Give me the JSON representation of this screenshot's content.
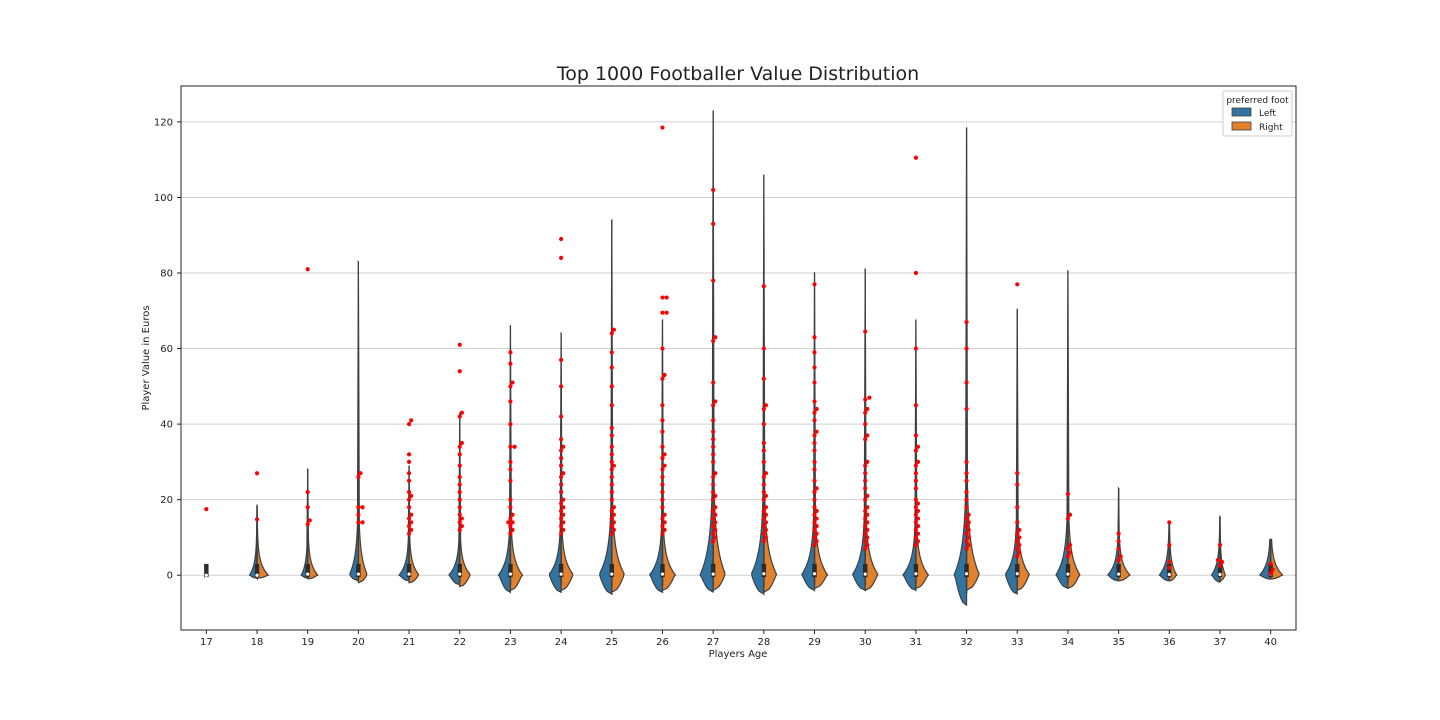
{
  "colors": {
    "left": "#3274a1",
    "right": "#e1812c",
    "swarm": "#ff0000",
    "outline": "#3f3f3f",
    "grid": "#d0d0d0"
  },
  "chart_data": {
    "type": "violin",
    "title": "Top 1000 Footballer Value Distribution",
    "xlabel": "Players Age",
    "ylabel": "Player Value in Euros",
    "categories": [
      "17",
      "18",
      "19",
      "20",
      "21",
      "22",
      "23",
      "24",
      "25",
      "26",
      "27",
      "28",
      "29",
      "30",
      "31",
      "32",
      "33",
      "34",
      "35",
      "36",
      "37",
      "40"
    ],
    "ylim": [
      -14.5,
      129.5
    ],
    "yticks": [
      0,
      20,
      40,
      60,
      80,
      100,
      120
    ],
    "grid": "horizontal",
    "legend": {
      "title": "preferred foot",
      "entries": [
        "Left",
        "Right"
      ],
      "position": "top-right"
    },
    "violins": [
      {
        "age": "17",
        "max": 1,
        "left": {
          "w": 0.01,
          "min": -0.2
        },
        "right": {
          "w": 0.01,
          "min": -0.2
        },
        "median": 0,
        "outliers": [
          17.5
        ]
      },
      {
        "age": "18",
        "max": 18.5,
        "left": {
          "w": 0.3,
          "min": -0.8
        },
        "right": {
          "w": 0.45,
          "min": -0.8
        },
        "median": 0,
        "outliers": [
          27,
          14.8
        ]
      },
      {
        "age": "19",
        "max": 28,
        "left": {
          "w": 0.26,
          "min": -0.8
        },
        "right": {
          "w": 0.4,
          "min": -1
        },
        "median": 0.3,
        "outliers": [
          81,
          22,
          18,
          14.5,
          13.5
        ]
      },
      {
        "age": "20",
        "max": 83,
        "left": {
          "w": 0.36,
          "min": -1.5
        },
        "right": {
          "w": 0.36,
          "min": -2
        },
        "median": 0.3,
        "outliers": [
          27,
          26,
          18,
          18,
          16,
          14,
          14
        ]
      },
      {
        "age": "21",
        "max": 29,
        "left": {
          "w": 0.4,
          "min": -1.5
        },
        "right": {
          "w": 0.4,
          "min": -2
        },
        "median": 0.3,
        "outliers": [
          41,
          40,
          32,
          30,
          27,
          25,
          22,
          21,
          20,
          18,
          16,
          15,
          14,
          13,
          12,
          11
        ]
      },
      {
        "age": "22",
        "max": 43,
        "left": {
          "w": 0.44,
          "min": -2.5
        },
        "right": {
          "w": 0.44,
          "min": -3
        },
        "median": 0.3,
        "outliers": [
          61,
          54,
          43,
          42,
          35,
          34,
          32,
          29,
          26,
          24,
          22,
          20,
          18,
          16,
          15,
          14,
          13,
          12
        ]
      },
      {
        "age": "23",
        "max": 66,
        "left": {
          "w": 0.48,
          "min": -4.5
        },
        "right": {
          "w": 0.48,
          "min": -4
        },
        "median": 0.3,
        "outliers": [
          59,
          56,
          51,
          50,
          46,
          40,
          34,
          34,
          30,
          28,
          25,
          20,
          18,
          16,
          15,
          14,
          14,
          13,
          12,
          11
        ]
      },
      {
        "age": "24",
        "max": 64,
        "left": {
          "w": 0.5,
          "min": -4.5
        },
        "right": {
          "w": 0.5,
          "min": -4
        },
        "median": 0.3,
        "outliers": [
          89,
          84,
          57,
          50,
          42,
          36,
          34,
          33,
          31,
          29,
          27,
          26,
          24,
          22,
          20,
          19,
          18,
          17,
          16,
          15,
          14,
          13,
          12,
          11
        ]
      },
      {
        "age": "25",
        "max": 94,
        "left": {
          "w": 0.52,
          "min": -5
        },
        "right": {
          "w": 0.52,
          "min": -4.5
        },
        "median": 0.3,
        "outliers": [
          65,
          64,
          59,
          55,
          50,
          45,
          39,
          37,
          34,
          32,
          30,
          29,
          28,
          26,
          24,
          22,
          20,
          18,
          17,
          16,
          15,
          14,
          13,
          12,
          11
        ]
      },
      {
        "age": "26",
        "max": 67.5,
        "left": {
          "w": 0.52,
          "min": -4.5
        },
        "right": {
          "w": 0.52,
          "min": -4
        },
        "median": 0.3,
        "outliers": [
          118.5,
          73.5,
          73.5,
          69.5,
          69.5,
          60,
          53,
          52,
          45,
          41,
          38,
          34,
          32,
          31,
          29,
          28,
          26,
          24,
          22,
          20,
          18,
          16,
          15,
          14,
          13,
          12,
          11
        ]
      },
      {
        "age": "27",
        "max": 123,
        "left": {
          "w": 0.52,
          "min": -4.5
        },
        "right": {
          "w": 0.5,
          "min": -4
        },
        "median": 0.3,
        "outliers": [
          102,
          93,
          78,
          63,
          62,
          51,
          46,
          45,
          41,
          38,
          36,
          34,
          32,
          30,
          27,
          26,
          24,
          22,
          21,
          20,
          18,
          17,
          16,
          15,
          14,
          13,
          12,
          11,
          10,
          9
        ]
      },
      {
        "age": "28",
        "max": 106,
        "left": {
          "w": 0.52,
          "min": -5
        },
        "right": {
          "w": 0.52,
          "min": -4.5
        },
        "median": 0.4,
        "outliers": [
          76.5,
          60,
          52,
          45,
          44,
          40,
          35,
          33,
          30,
          27,
          26,
          24,
          22,
          21,
          20,
          18,
          17,
          16,
          15,
          14,
          13,
          12,
          11,
          10,
          9
        ]
      },
      {
        "age": "29",
        "max": 80,
        "left": {
          "w": 0.52,
          "min": -4
        },
        "right": {
          "w": 0.52,
          "min": -3.5
        },
        "median": 0.4,
        "outliers": [
          77,
          63,
          59,
          55,
          51,
          46,
          44,
          43,
          41,
          38,
          37,
          35,
          33,
          30,
          28,
          25,
          23,
          22,
          20,
          18,
          17,
          16,
          15,
          14,
          13,
          12,
          11,
          10,
          9,
          8
        ]
      },
      {
        "age": "30",
        "max": 81,
        "left": {
          "w": 0.52,
          "min": -4
        },
        "right": {
          "w": 0.52,
          "min": -4
        },
        "median": 0.3,
        "outliers": [
          64.5,
          47,
          46.5,
          44,
          43,
          40,
          37,
          36,
          30,
          29,
          27,
          25,
          23,
          21,
          20,
          18,
          17,
          16,
          15,
          14,
          13,
          12,
          11,
          10,
          9,
          8,
          7
        ]
      },
      {
        "age": "31",
        "max": 67.5,
        "left": {
          "w": 0.52,
          "min": -4
        },
        "right": {
          "w": 0.5,
          "min": -3.5
        },
        "median": 0.4,
        "outliers": [
          110.5,
          80,
          60,
          45,
          37,
          34,
          33,
          30,
          29,
          27,
          25,
          23,
          20,
          19,
          18,
          17,
          16,
          15,
          14,
          13,
          12,
          11,
          10,
          9,
          8
        ]
      },
      {
        "age": "32",
        "max": 118.5,
        "left": {
          "w": 0.5,
          "min": -8
        },
        "right": {
          "w": 0.52,
          "min": -4
        },
        "median": 0.4,
        "outliers": [
          67,
          60,
          51,
          44,
          30,
          27,
          25,
          22,
          20,
          18,
          16,
          15,
          14,
          13,
          12,
          11,
          10,
          9,
          8,
          7
        ]
      },
      {
        "age": "33",
        "max": 70.5,
        "left": {
          "w": 0.5,
          "min": -5
        },
        "right": {
          "w": 0.5,
          "min": -4
        },
        "median": 0.4,
        "outliers": [
          77,
          27,
          24,
          18,
          14,
          12,
          11,
          10,
          9,
          8,
          7,
          6,
          5
        ]
      },
      {
        "age": "34",
        "max": 80.5,
        "left": {
          "w": 0.48,
          "min": -3.5
        },
        "right": {
          "w": 0.48,
          "min": -3.5
        },
        "median": 0.3,
        "outliers": [
          21.5,
          16,
          15,
          8,
          7,
          6,
          5
        ]
      },
      {
        "age": "35",
        "max": 23,
        "left": {
          "w": 0.44,
          "min": -1.5
        },
        "right": {
          "w": 0.46,
          "min": -1.5
        },
        "median": 0.3,
        "outliers": [
          11,
          9,
          7,
          5,
          4
        ]
      },
      {
        "age": "36",
        "max": 14,
        "left": {
          "w": 0.4,
          "min": -1.5
        },
        "right": {
          "w": 0.3,
          "min": -1.5
        },
        "median": 0.2,
        "outliers": [
          14,
          8,
          3.5,
          2
        ]
      },
      {
        "age": "37",
        "max": 15.5,
        "left": {
          "w": 0.34,
          "min": -1.8
        },
        "right": {
          "w": 0.22,
          "min": -1.5
        },
        "median": 0.2,
        "outliers": [
          8,
          4,
          3.5,
          2.5
        ]
      },
      {
        "age": "40",
        "max": 9.5,
        "left": {
          "w": 0.44,
          "min": -1
        },
        "right": {
          "w": 0.48,
          "min": -1
        },
        "median": 0.3,
        "outliers": [
          3,
          1.5,
          0.5
        ]
      }
    ]
  }
}
